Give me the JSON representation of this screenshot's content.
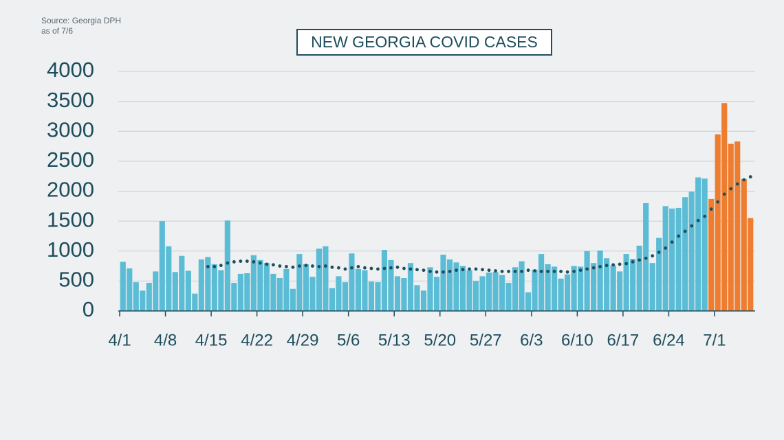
{
  "chart_data": {
    "type": "bar",
    "title": "NEW GEORGIA COVID CASES",
    "source": "Source: Georgia DPH",
    "as_of": "as of 7/6",
    "categories": [
      "4/1",
      null,
      null,
      null,
      null,
      null,
      null,
      "4/8",
      null,
      null,
      null,
      null,
      null,
      null,
      "4/15",
      null,
      null,
      null,
      null,
      null,
      null,
      "4/22",
      null,
      null,
      null,
      null,
      null,
      null,
      "4/29",
      null,
      null,
      null,
      null,
      null,
      null,
      "5/6",
      null,
      null,
      null,
      null,
      null,
      null,
      "5/13",
      null,
      null,
      null,
      null,
      null,
      null,
      "5/20",
      null,
      null,
      null,
      null,
      null,
      null,
      "5/27",
      null,
      null,
      null,
      null,
      null,
      null,
      "6/3",
      null,
      null,
      null,
      null,
      null,
      null,
      "6/10",
      null,
      null,
      null,
      null,
      null,
      null,
      "6/17",
      null,
      null,
      null,
      null,
      null,
      null,
      "6/24",
      null,
      null,
      null,
      null,
      null,
      null,
      "7/1",
      null,
      null,
      null,
      null,
      null
    ],
    "values": [
      820,
      710,
      480,
      340,
      470,
      660,
      1500,
      1080,
      650,
      920,
      670,
      290,
      860,
      900,
      780,
      680,
      1510,
      470,
      620,
      630,
      930,
      850,
      800,
      620,
      550,
      700,
      370,
      950,
      780,
      570,
      1040,
      1080,
      380,
      580,
      480,
      960,
      700,
      680,
      490,
      480,
      1020,
      850,
      580,
      550,
      800,
      430,
      340,
      730,
      570,
      940,
      860,
      810,
      750,
      680,
      500,
      580,
      640,
      650,
      600,
      470,
      730,
      830,
      310,
      690,
      950,
      780,
      740,
      540,
      610,
      750,
      740,
      1000,
      800,
      1010,
      880,
      760,
      660,
      950,
      870,
      1090,
      1800,
      800,
      1220,
      1750,
      1710,
      1720,
      1900,
      1990,
      2230,
      2210,
      1870,
      2950,
      3470,
      2790,
      2830,
      2200,
      1550
    ],
    "colors": [
      "#5bbcd6",
      "#5bbcd6",
      "#5bbcd6",
      "#5bbcd6",
      "#5bbcd6",
      "#5bbcd6",
      "#5bbcd6",
      "#5bbcd6",
      "#5bbcd6",
      "#5bbcd6",
      "#5bbcd6",
      "#5bbcd6",
      "#5bbcd6",
      "#5bbcd6",
      "#5bbcd6",
      "#5bbcd6",
      "#5bbcd6",
      "#5bbcd6",
      "#5bbcd6",
      "#5bbcd6",
      "#5bbcd6",
      "#5bbcd6",
      "#5bbcd6",
      "#5bbcd6",
      "#5bbcd6",
      "#5bbcd6",
      "#5bbcd6",
      "#5bbcd6",
      "#5bbcd6",
      "#5bbcd6",
      "#5bbcd6",
      "#5bbcd6",
      "#5bbcd6",
      "#5bbcd6",
      "#5bbcd6",
      "#5bbcd6",
      "#5bbcd6",
      "#5bbcd6",
      "#5bbcd6",
      "#5bbcd6",
      "#5bbcd6",
      "#5bbcd6",
      "#5bbcd6",
      "#5bbcd6",
      "#5bbcd6",
      "#5bbcd6",
      "#5bbcd6",
      "#5bbcd6",
      "#5bbcd6",
      "#5bbcd6",
      "#5bbcd6",
      "#5bbcd6",
      "#5bbcd6",
      "#5bbcd6",
      "#5bbcd6",
      "#5bbcd6",
      "#5bbcd6",
      "#5bbcd6",
      "#5bbcd6",
      "#5bbcd6",
      "#5bbcd6",
      "#5bbcd6",
      "#5bbcd6",
      "#5bbcd6",
      "#5bbcd6",
      "#5bbcd6",
      "#5bbcd6",
      "#5bbcd6",
      "#5bbcd6",
      "#5bbcd6",
      "#5bbcd6",
      "#5bbcd6",
      "#5bbcd6",
      "#5bbcd6",
      "#5bbcd6",
      "#5bbcd6",
      "#5bbcd6",
      "#5bbcd6",
      "#5bbcd6",
      "#5bbcd6",
      "#5bbcd6",
      "#5bbcd6",
      "#5bbcd6",
      "#5bbcd6",
      "#5bbcd6",
      "#5bbcd6",
      "#5bbcd6",
      "#5bbcd6",
      "#5bbcd6",
      "#5bbcd6",
      "#ef7d2f",
      "#ef7d2f",
      "#ef7d2f",
      "#ef7d2f",
      "#ef7d2f",
      "#ef7d2f",
      "#ef7d2f"
    ],
    "average": {
      "color": "#1d4f5c",
      "values": [
        null,
        null,
        null,
        null,
        null,
        null,
        null,
        null,
        null,
        null,
        null,
        null,
        null,
        740,
        740,
        760,
        800,
        820,
        830,
        830,
        820,
        800,
        780,
        770,
        750,
        740,
        730,
        750,
        760,
        750,
        740,
        750,
        730,
        720,
        700,
        720,
        740,
        720,
        710,
        700,
        710,
        720,
        730,
        710,
        700,
        690,
        680,
        660,
        650,
        650,
        660,
        680,
        690,
        700,
        700,
        690,
        680,
        670,
        660,
        660,
        660,
        660,
        680,
        670,
        660,
        660,
        660,
        660,
        650,
        660,
        680,
        700,
        720,
        740,
        760,
        770,
        780,
        790,
        820,
        850,
        880,
        920,
        980,
        1050,
        1150,
        1250,
        1330,
        1420,
        1510,
        1580,
        1700,
        1820,
        1950,
        2040,
        2120,
        2190,
        2240
      ]
    },
    "ylim": [
      0,
      4000
    ],
    "yticks": [
      0,
      500,
      1000,
      1500,
      2000,
      2500,
      3000,
      3500,
      4000
    ],
    "grid": true
  }
}
